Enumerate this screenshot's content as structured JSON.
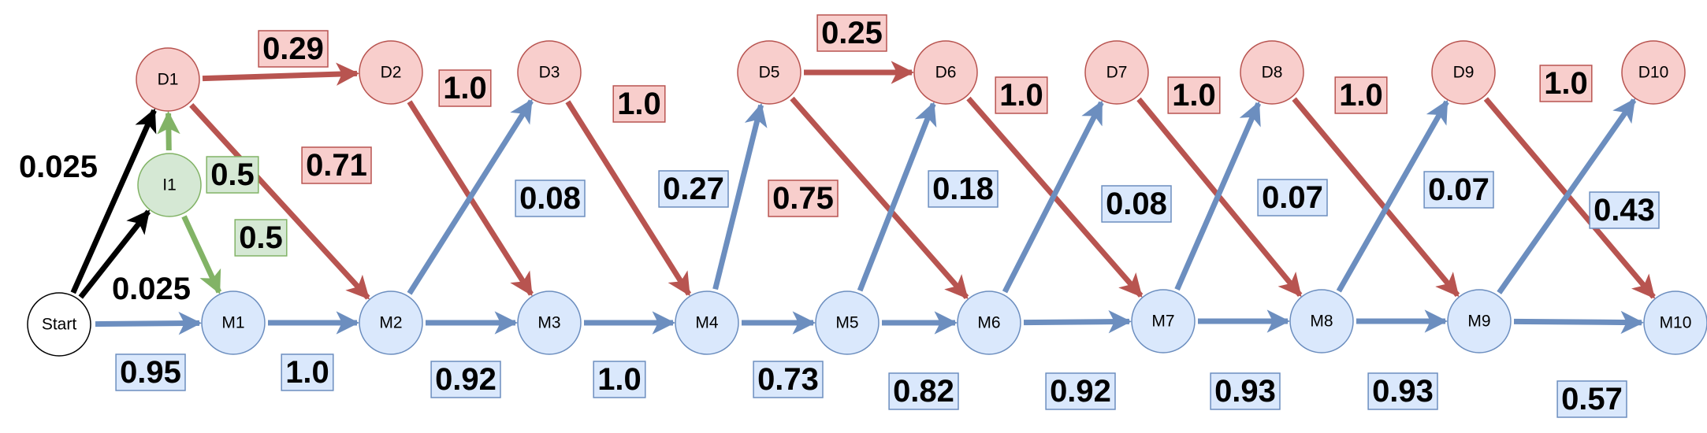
{
  "colors": {
    "match": "#6c8ebf",
    "delete": "#b85450",
    "insert": "#82b366",
    "start": "#000000",
    "match_fill": "#dae8fc",
    "delete_fill": "#f8cecc",
    "insert_fill": "#d5e8d4",
    "start_fill": "#ffffff"
  },
  "nodes": [
    {
      "id": "Start",
      "label": "Start",
      "kind": "start"
    },
    {
      "id": "I1",
      "label": "I1",
      "kind": "insert"
    },
    {
      "id": "M1",
      "label": "M1",
      "kind": "match"
    },
    {
      "id": "M2",
      "label": "M2",
      "kind": "match"
    },
    {
      "id": "M3",
      "label": "M3",
      "kind": "match"
    },
    {
      "id": "M4",
      "label": "M4",
      "kind": "match"
    },
    {
      "id": "M5",
      "label": "M5",
      "kind": "match"
    },
    {
      "id": "M6",
      "label": "M6",
      "kind": "match"
    },
    {
      "id": "M7",
      "label": "M7",
      "kind": "match"
    },
    {
      "id": "M8",
      "label": "M8",
      "kind": "match"
    },
    {
      "id": "M9",
      "label": "M9",
      "kind": "match"
    },
    {
      "id": "M10",
      "label": "M10",
      "kind": "match"
    },
    {
      "id": "D1",
      "label": "D1",
      "kind": "delete"
    },
    {
      "id": "D2",
      "label": "D2",
      "kind": "delete"
    },
    {
      "id": "D3",
      "label": "D3",
      "kind": "delete"
    },
    {
      "id": "D5",
      "label": "D5",
      "kind": "delete"
    },
    {
      "id": "D6",
      "label": "D6",
      "kind": "delete"
    },
    {
      "id": "D7",
      "label": "D7",
      "kind": "delete"
    },
    {
      "id": "D8",
      "label": "D8",
      "kind": "delete"
    },
    {
      "id": "D9",
      "label": "D9",
      "kind": "delete"
    },
    {
      "id": "D10",
      "label": "D10",
      "kind": "delete"
    }
  ],
  "edges": [
    {
      "from": "Start",
      "to": "D1",
      "kind": "start",
      "label": "0.025"
    },
    {
      "from": "Start",
      "to": "I1",
      "kind": "start",
      "label": "0.025"
    },
    {
      "from": "Start",
      "to": "M1",
      "kind": "match",
      "label": "0.95"
    },
    {
      "from": "I1",
      "to": "D1",
      "kind": "insert",
      "label": "0.5"
    },
    {
      "from": "I1",
      "to": "M1",
      "kind": "insert",
      "label": "0.5"
    },
    {
      "from": "D1",
      "to": "D2",
      "kind": "delete",
      "label": "0.29"
    },
    {
      "from": "D1",
      "to": "M2",
      "kind": "delete",
      "label": "0.71"
    },
    {
      "from": "D2",
      "to": "M3",
      "kind": "delete",
      "label": "1.0"
    },
    {
      "from": "D3",
      "to": "M4",
      "kind": "delete",
      "label": "1.0"
    },
    {
      "from": "D5",
      "to": "D6",
      "kind": "delete",
      "label": "0.25"
    },
    {
      "from": "D5",
      "to": "M6",
      "kind": "delete",
      "label": "0.75"
    },
    {
      "from": "D6",
      "to": "M7",
      "kind": "delete",
      "label": "1.0"
    },
    {
      "from": "D7",
      "to": "M8",
      "kind": "delete",
      "label": "1.0"
    },
    {
      "from": "D8",
      "to": "M9",
      "kind": "delete",
      "label": "1.0"
    },
    {
      "from": "D9",
      "to": "M10",
      "kind": "delete",
      "label": "1.0"
    },
    {
      "from": "M1",
      "to": "M2",
      "kind": "match",
      "label": "1.0"
    },
    {
      "from": "M2",
      "to": "M3",
      "kind": "match",
      "label": "0.92"
    },
    {
      "from": "M2",
      "to": "D3",
      "kind": "match",
      "label": "0.08"
    },
    {
      "from": "M3",
      "to": "M4",
      "kind": "match",
      "label": "1.0"
    },
    {
      "from": "M4",
      "to": "M5",
      "kind": "match",
      "label": "0.73"
    },
    {
      "from": "M4",
      "to": "D5",
      "kind": "match",
      "label": "0.27"
    },
    {
      "from": "M5",
      "to": "M6",
      "kind": "match",
      "label": "0.82"
    },
    {
      "from": "M5",
      "to": "D6",
      "kind": "match",
      "label": "0.18"
    },
    {
      "from": "M6",
      "to": "M7",
      "kind": "match",
      "label": "0.92"
    },
    {
      "from": "M6",
      "to": "D7",
      "kind": "match",
      "label": "0.08"
    },
    {
      "from": "M7",
      "to": "M8",
      "kind": "match",
      "label": "0.93"
    },
    {
      "from": "M7",
      "to": "D8",
      "kind": "match",
      "label": "0.07"
    },
    {
      "from": "M8",
      "to": "M9",
      "kind": "match",
      "label": "0.93"
    },
    {
      "from": "M8",
      "to": "D9",
      "kind": "match",
      "label": "0.07"
    },
    {
      "from": "M9",
      "to": "M10",
      "kind": "match",
      "label": "0.57"
    },
    {
      "from": "M9",
      "to": "D10",
      "kind": "match",
      "label": "0.43"
    }
  ]
}
